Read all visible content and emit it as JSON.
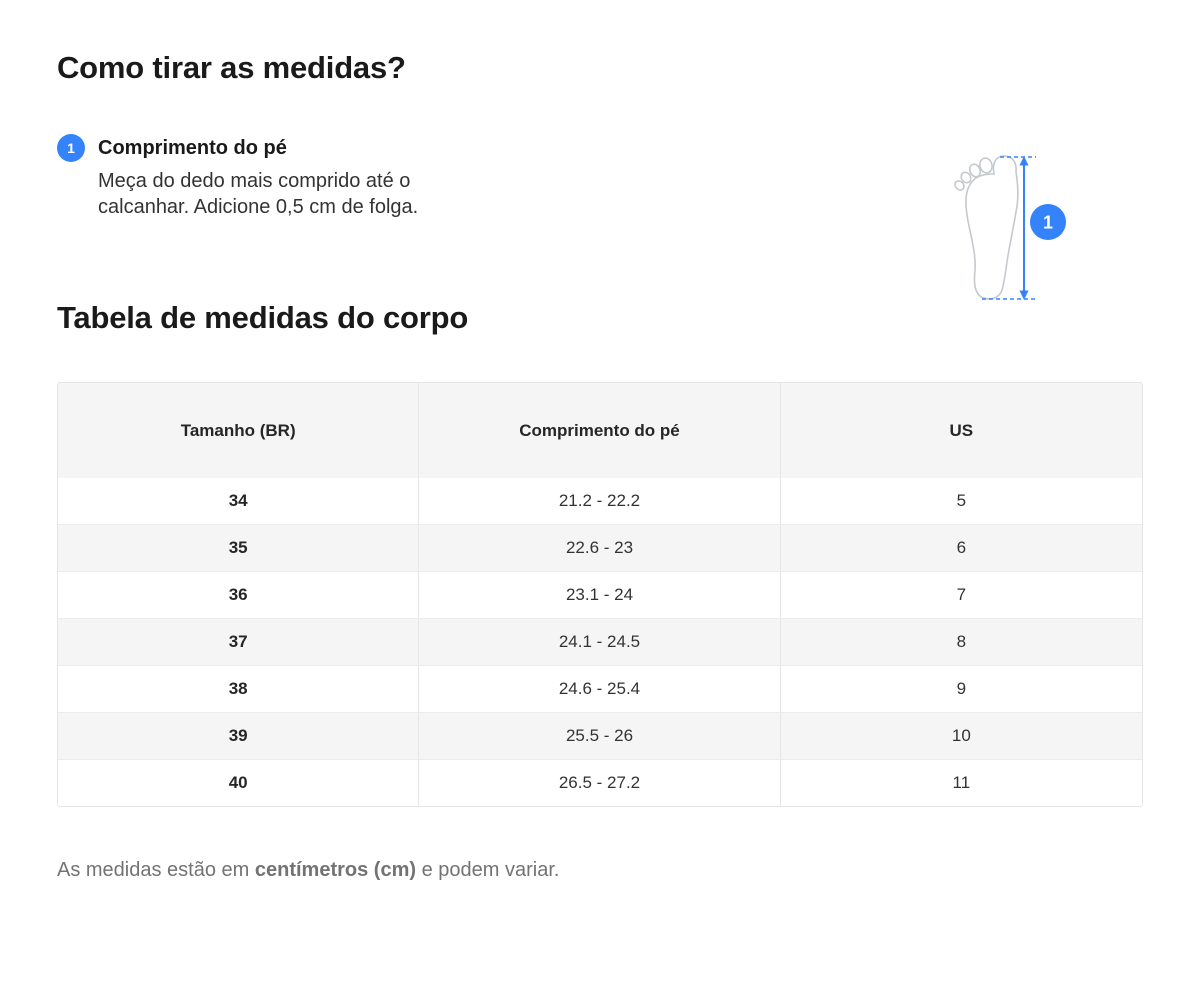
{
  "page": {
    "title": "Como tirar as medidas?",
    "section_title": "Tabela de medidas do corpo"
  },
  "step": {
    "number": "1",
    "label": "Comprimento do pé",
    "description": "Meça do dedo mais comprido até o calcanhar. Adicione 0,5 cm de folga."
  },
  "diagram": {
    "badge": "1"
  },
  "size_table": {
    "headers": [
      "Tamanho (BR)",
      "Comprimento do pé",
      "US"
    ],
    "rows": [
      [
        "34",
        "21.2 - 22.2",
        "5"
      ],
      [
        "35",
        "22.6 - 23",
        "6"
      ],
      [
        "36",
        "23.1 - 24",
        "7"
      ],
      [
        "37",
        "24.1 - 24.5",
        "8"
      ],
      [
        "38",
        "24.6 - 25.4",
        "9"
      ],
      [
        "39",
        "25.5 - 26",
        "10"
      ],
      [
        "40",
        "26.5 - 27.2",
        "11"
      ]
    ]
  },
  "footnote": {
    "prefix": "As medidas estão em ",
    "bold": "centímetros (cm)",
    "suffix": " e podem variar."
  },
  "colors": {
    "accent": "#3483fa",
    "header_bg": "#f5f5f5",
    "row_alt_bg": "#f5f5f5",
    "border": "#e6e6e6",
    "text": "#333333",
    "muted": "#737373",
    "diagram_stroke": "#c4c9ce"
  }
}
